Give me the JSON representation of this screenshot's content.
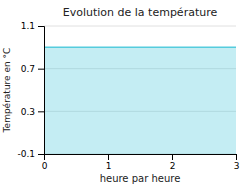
{
  "chart_data": {
    "type": "area",
    "title": "Evolution de la température",
    "xlabel": "heure par heure",
    "ylabel": "Température en °C",
    "x": [
      0,
      3
    ],
    "values": [
      0.9,
      0.9
    ],
    "color": "#55ccdd",
    "xlim": [
      0,
      3
    ],
    "ylim": [
      -0.1,
      1.1
    ],
    "xticks": [
      0,
      1,
      2,
      3
    ],
    "yticks": [
      -0.1,
      0.3,
      0.7,
      1.1
    ],
    "grid": true
  }
}
